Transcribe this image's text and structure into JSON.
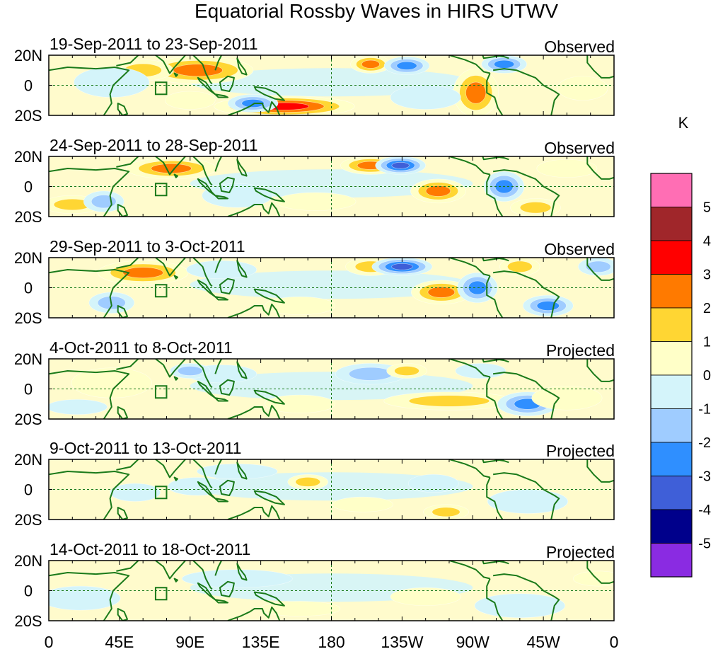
{
  "title": "Equatorial Rossby Waves in HIRS UTWV",
  "unit_label": "K",
  "lat_labels": [
    "20N",
    "0",
    "20S"
  ],
  "lon_labels": [
    "0",
    "45E",
    "90E",
    "135E",
    "180",
    "135W",
    "90W",
    "45W",
    "0"
  ],
  "colorbar": {
    "tick_labels": [
      "5",
      "4",
      "3",
      "2",
      "1",
      "0",
      "-1",
      "-2",
      "-3",
      "-4",
      "-5"
    ],
    "colors": [
      "#ff6eb4",
      "#a0262a",
      "#ff0000",
      "#ff7a00",
      "#ffd633",
      "#ffffc8",
      "#d4f4fa",
      "#9fccff",
      "#2f8fff",
      "#3f5fd8",
      "#00008b",
      "#8a2be2"
    ]
  },
  "panels": [
    {
      "dates": "19-Sep-2011 to 23-Sep-2011",
      "type": "Observed",
      "anomalies": [
        {
          "lon": 95,
          "lat": 10,
          "rx": 22,
          "ry": 9,
          "value": 3
        },
        {
          "lon": 150,
          "lat": -14,
          "rx": 28,
          "ry": 7,
          "value": 4
        },
        {
          "lon": 130,
          "lat": -12,
          "rx": 10,
          "ry": 6,
          "value": -3
        },
        {
          "lon": 205,
          "lat": 14,
          "rx": 8,
          "ry": 6,
          "value": 3
        },
        {
          "lon": 228,
          "lat": 13,
          "rx": 9,
          "ry": 6,
          "value": -3
        },
        {
          "lon": 272,
          "lat": -5,
          "rx": 9,
          "ry": 16,
          "value": 3
        },
        {
          "lon": 290,
          "lat": 14,
          "rx": 9,
          "ry": 6,
          "value": -3
        },
        {
          "lon": 60,
          "lat": 10,
          "rx": 12,
          "ry": 7,
          "value": 2
        },
        {
          "lon": 90,
          "lat": -10,
          "rx": 10,
          "ry": 6,
          "value": 1
        },
        {
          "lon": 40,
          "lat": 2,
          "rx": 15,
          "ry": 10,
          "value": -1
        },
        {
          "lon": 240,
          "lat": -8,
          "rx": 14,
          "ry": 8,
          "value": -1
        },
        {
          "lon": 340,
          "lat": -2,
          "rx": 10,
          "ry": 8,
          "value": 1
        }
      ]
    },
    {
      "dates": "24-Sep-2011 to 28-Sep-2011",
      "type": "Observed",
      "anomalies": [
        {
          "lon": 78,
          "lat": 12,
          "rx": 18,
          "ry": 7,
          "value": 3
        },
        {
          "lon": 205,
          "lat": 14,
          "rx": 12,
          "ry": 6,
          "value": 3
        },
        {
          "lon": 224,
          "lat": 14,
          "rx": 10,
          "ry": 6,
          "value": -4
        },
        {
          "lon": 248,
          "lat": -3,
          "rx": 11,
          "ry": 8,
          "value": 3
        },
        {
          "lon": 290,
          "lat": 0,
          "rx": 8,
          "ry": 10,
          "value": -3
        },
        {
          "lon": 15,
          "lat": -12,
          "rx": 12,
          "ry": 6,
          "value": 2
        },
        {
          "lon": 35,
          "lat": -10,
          "rx": 8,
          "ry": 7,
          "value": -2
        },
        {
          "lon": 310,
          "lat": -14,
          "rx": 10,
          "ry": 6,
          "value": 2
        },
        {
          "lon": 330,
          "lat": 12,
          "rx": 12,
          "ry": 6,
          "value": 1
        },
        {
          "lon": 120,
          "lat": -6,
          "rx": 14,
          "ry": 8,
          "value": -1
        },
        {
          "lon": 170,
          "lat": -10,
          "rx": 16,
          "ry": 6,
          "value": 1
        }
      ]
    },
    {
      "dates": "29-Sep-2011 to 3-Oct-2011",
      "type": "Observed",
      "anomalies": [
        {
          "lon": 60,
          "lat": 10,
          "rx": 18,
          "ry": 8,
          "value": 3
        },
        {
          "lon": 205,
          "lat": 14,
          "rx": 10,
          "ry": 6,
          "value": 2
        },
        {
          "lon": 225,
          "lat": 14,
          "rx": 12,
          "ry": 6,
          "value": -4
        },
        {
          "lon": 250,
          "lat": -3,
          "rx": 12,
          "ry": 8,
          "value": 3
        },
        {
          "lon": 273,
          "lat": 0,
          "rx": 8,
          "ry": 10,
          "value": -3
        },
        {
          "lon": 300,
          "lat": 14,
          "rx": 8,
          "ry": 6,
          "value": 2
        },
        {
          "lon": 318,
          "lat": -12,
          "rx": 10,
          "ry": 7,
          "value": -3
        },
        {
          "lon": 350,
          "lat": 14,
          "rx": 8,
          "ry": 6,
          "value": -2
        },
        {
          "lon": 40,
          "lat": -10,
          "rx": 9,
          "ry": 7,
          "value": -2
        },
        {
          "lon": 160,
          "lat": -12,
          "rx": 14,
          "ry": 6,
          "value": 1
        },
        {
          "lon": 110,
          "lat": 12,
          "rx": 14,
          "ry": 6,
          "value": -1
        }
      ]
    },
    {
      "dates": "4-Oct-2011 to 8-Oct-2011",
      "type": "Projected",
      "anomalies": [
        {
          "lon": 40,
          "lat": 4,
          "rx": 16,
          "ry": 10,
          "value": 1
        },
        {
          "lon": 110,
          "lat": 10,
          "rx": 14,
          "ry": 6,
          "value": -1
        },
        {
          "lon": 90,
          "lat": 12,
          "rx": 8,
          "ry": 5,
          "value": -2
        },
        {
          "lon": 205,
          "lat": 10,
          "rx": 14,
          "ry": 7,
          "value": -2
        },
        {
          "lon": 228,
          "lat": 12,
          "rx": 8,
          "ry": 5,
          "value": 2
        },
        {
          "lon": 255,
          "lat": -8,
          "rx": 26,
          "ry": 6,
          "value": 2
        },
        {
          "lon": 305,
          "lat": -10,
          "rx": 12,
          "ry": 8,
          "value": -3
        },
        {
          "lon": 330,
          "lat": -6,
          "rx": 14,
          "ry": 8,
          "value": 1
        },
        {
          "lon": 18,
          "lat": -12,
          "rx": 12,
          "ry": 5,
          "value": -1
        },
        {
          "lon": 160,
          "lat": -10,
          "rx": 14,
          "ry": 6,
          "value": 1
        },
        {
          "lon": 275,
          "lat": 12,
          "rx": 10,
          "ry": 5,
          "value": -1
        }
      ]
    },
    {
      "dates": "9-Oct-2011 to 13-Oct-2011",
      "type": "Projected",
      "anomalies": [
        {
          "lon": 95,
          "lat": 2,
          "rx": 12,
          "ry": 6,
          "value": -1
        },
        {
          "lon": 55,
          "lat": -2,
          "rx": 10,
          "ry": 6,
          "value": -1
        },
        {
          "lon": 165,
          "lat": 5,
          "rx": 8,
          "ry": 5,
          "value": 2
        },
        {
          "lon": 245,
          "lat": 4,
          "rx": 10,
          "ry": 6,
          "value": -1
        },
        {
          "lon": 253,
          "lat": -15,
          "rx": 9,
          "ry": 5,
          "value": 2
        },
        {
          "lon": 305,
          "lat": -8,
          "rx": 16,
          "ry": 8,
          "value": -1
        },
        {
          "lon": 200,
          "lat": -10,
          "rx": 12,
          "ry": 5,
          "value": 1
        },
        {
          "lon": 120,
          "lat": 12,
          "rx": 16,
          "ry": 5,
          "value": -1
        }
      ]
    },
    {
      "dates": "14-Oct-2011 to 18-Oct-2011",
      "type": "Projected",
      "anomalies": [
        {
          "lon": 20,
          "lat": -5,
          "rx": 16,
          "ry": 8,
          "value": -1
        },
        {
          "lon": 120,
          "lat": 8,
          "rx": 22,
          "ry": 6,
          "value": -1
        },
        {
          "lon": 160,
          "lat": -12,
          "rx": 16,
          "ry": 5,
          "value": 1
        },
        {
          "lon": 300,
          "lat": -10,
          "rx": 18,
          "ry": 8,
          "value": -1
        },
        {
          "lon": 350,
          "lat": 8,
          "rx": 10,
          "ry": 5,
          "value": 1
        },
        {
          "lon": 240,
          "lat": -4,
          "rx": 14,
          "ry": 6,
          "value": 1
        }
      ]
    }
  ]
}
